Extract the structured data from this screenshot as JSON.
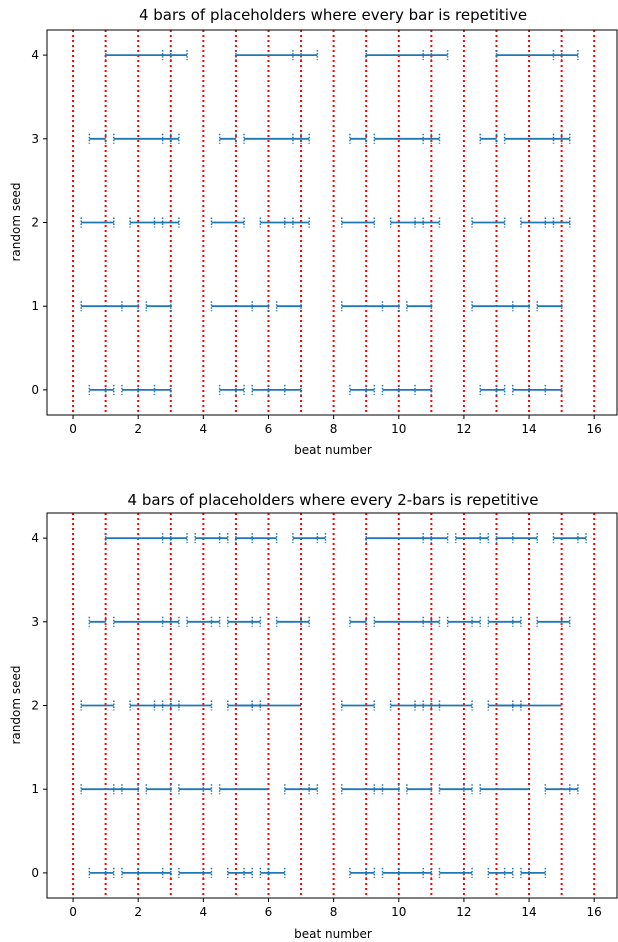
{
  "colors": {
    "segment": "#1f77b4",
    "beat_line": "#ff0000",
    "axes": "#000000"
  },
  "chart_data": [
    {
      "type": "segments",
      "title": "4 bars of placeholders where every bar is repetitive",
      "xlabel": "beat number",
      "ylabel": "random seed",
      "xlim": [
        -0.8,
        16.7
      ],
      "ylim": [
        -0.3,
        4.3
      ],
      "xticks": [
        0,
        2,
        4,
        6,
        8,
        10,
        12,
        14,
        16
      ],
      "yticks": [
        0,
        1,
        2,
        3,
        4
      ],
      "beat_lines": [
        0,
        1,
        2,
        3,
        4,
        5,
        6,
        7,
        8,
        9,
        10,
        11,
        12,
        13,
        14,
        15,
        16
      ],
      "rows": [
        {
          "seed": 0,
          "segments": [
            [
              0.5,
              1.25
            ],
            [
              1.5,
              3.0
            ],
            [
              4.5,
              5.25
            ],
            [
              5.5,
              7.0
            ],
            [
              8.5,
              9.25
            ],
            [
              9.5,
              11.0
            ],
            [
              12.5,
              13.25
            ],
            [
              13.5,
              15.0
            ]
          ],
          "ticks": [
            0.5,
            1.0,
            1.25,
            1.5,
            2.0,
            2.5,
            3.0,
            4.5,
            5.0,
            5.25,
            5.5,
            6.0,
            6.5,
            7.0,
            8.5,
            9.0,
            9.25,
            9.5,
            10.0,
            10.5,
            11.0,
            12.5,
            13.0,
            13.25,
            13.5,
            14.0,
            14.5,
            15.0
          ]
        },
        {
          "seed": 1,
          "segments": [
            [
              0.25,
              2.0
            ],
            [
              2.25,
              3.0
            ],
            [
              4.25,
              6.0
            ],
            [
              6.25,
              7.0
            ],
            [
              8.25,
              10.0
            ],
            [
              10.25,
              11.0
            ],
            [
              12.25,
              14.0
            ],
            [
              14.25,
              15.0
            ]
          ],
          "ticks": [
            0.25,
            1.5,
            2.0,
            2.25,
            3.0,
            4.25,
            5.5,
            6.0,
            6.25,
            7.0,
            8.25,
            9.5,
            10.0,
            10.25,
            11.0,
            12.25,
            13.5,
            14.0,
            14.25,
            15.0
          ]
        },
        {
          "seed": 2,
          "segments": [
            [
              0.25,
              1.25
            ],
            [
              1.75,
              3.25
            ],
            [
              4.25,
              5.25
            ],
            [
              5.75,
              7.25
            ],
            [
              8.25,
              9.25
            ],
            [
              9.75,
              11.25
            ],
            [
              12.25,
              13.25
            ],
            [
              13.75,
              15.25
            ]
          ],
          "ticks": [
            0.25,
            1.25,
            1.75,
            2.5,
            2.75,
            3.25,
            4.25,
            5.25,
            5.75,
            6.5,
            6.75,
            7.25,
            8.25,
            9.25,
            9.75,
            10.5,
            10.75,
            11.25,
            12.25,
            13.25,
            13.75,
            14.5,
            14.75,
            15.25
          ]
        },
        {
          "seed": 3,
          "segments": [
            [
              0.5,
              1.0
            ],
            [
              1.25,
              3.25
            ],
            [
              4.5,
              5.0
            ],
            [
              5.25,
              7.25
            ],
            [
              8.5,
              9.0
            ],
            [
              9.25,
              11.25
            ],
            [
              12.5,
              13.0
            ],
            [
              13.25,
              15.25
            ]
          ],
          "ticks": [
            0.5,
            1.0,
            1.25,
            2.75,
            3.0,
            3.25,
            4.5,
            5.0,
            5.25,
            6.75,
            7.0,
            7.25,
            8.5,
            9.0,
            9.25,
            10.75,
            11.0,
            11.25,
            12.5,
            13.0,
            13.25,
            14.75,
            15.0,
            15.25
          ]
        },
        {
          "seed": 4,
          "segments": [
            [
              1.0,
              3.5
            ],
            [
              5.0,
              7.5
            ],
            [
              9.0,
              11.5
            ],
            [
              13.0,
              15.5
            ]
          ],
          "ticks": [
            1.0,
            2.75,
            3.0,
            3.5,
            5.0,
            6.75,
            7.0,
            7.5,
            9.0,
            10.75,
            11.0,
            11.5,
            13.0,
            14.75,
            15.0,
            15.5
          ]
        }
      ]
    },
    {
      "type": "segments",
      "title": "4 bars of placeholders where every 2-bars is repetitive",
      "xlabel": "beat number",
      "ylabel": "random seed",
      "xlim": [
        -0.8,
        16.7
      ],
      "ylim": [
        -0.3,
        4.3
      ],
      "xticks": [
        0,
        2,
        4,
        6,
        8,
        10,
        12,
        14,
        16
      ],
      "yticks": [
        0,
        1,
        2,
        3,
        4
      ],
      "beat_lines": [
        0,
        1,
        2,
        3,
        4,
        5,
        6,
        7,
        8,
        9,
        10,
        11,
        12,
        13,
        14,
        15,
        16
      ],
      "rows": [
        {
          "seed": 0,
          "segments": [
            [
              0.5,
              1.25
            ],
            [
              1.5,
              3.0
            ],
            [
              3.25,
              4.25
            ],
            [
              4.75,
              5.5
            ],
            [
              5.75,
              6.5
            ],
            [
              8.5,
              9.25
            ],
            [
              9.5,
              11.0
            ],
            [
              11.25,
              12.25
            ],
            [
              12.75,
              13.5
            ],
            [
              13.75,
              14.5
            ]
          ],
          "ticks": [
            0.5,
            1.0,
            1.25,
            1.5,
            2.0,
            2.75,
            3.0,
            3.25,
            4.0,
            4.25,
            4.75,
            5.25,
            5.5,
            5.75,
            6.0,
            6.5,
            8.5,
            9.0,
            9.25,
            9.5,
            10.0,
            10.75,
            11.0,
            11.25,
            12.0,
            12.25,
            12.75,
            13.25,
            13.5,
            13.75,
            14.0,
            14.5
          ]
        },
        {
          "seed": 1,
          "segments": [
            [
              0.25,
              2.0
            ],
            [
              2.25,
              3.0
            ],
            [
              3.25,
              4.25
            ],
            [
              4.5,
              6.0
            ],
            [
              6.5,
              7.5
            ],
            [
              8.25,
              10.0
            ],
            [
              10.25,
              11.0
            ],
            [
              11.25,
              12.25
            ],
            [
              12.5,
              14.0
            ],
            [
              14.5,
              15.5
            ]
          ],
          "ticks": [
            0.25,
            1.25,
            1.5,
            2.0,
            2.25,
            3.0,
            3.25,
            4.0,
            4.25,
            4.5,
            6.5,
            7.25,
            7.5,
            8.25,
            9.25,
            9.5,
            10.0,
            10.25,
            11.0,
            11.25,
            12.0,
            12.25,
            12.5,
            14.5,
            15.25,
            15.5
          ]
        },
        {
          "seed": 2,
          "segments": [
            [
              0.25,
              1.25
            ],
            [
              1.75,
              4.25
            ],
            [
              4.75,
              5.75
            ],
            [
              5.0,
              7.0
            ],
            [
              8.25,
              9.25
            ],
            [
              9.75,
              12.25
            ],
            [
              12.75,
              13.75
            ],
            [
              13.0,
              15.0
            ]
          ],
          "ticks": [
            0.25,
            1.25,
            1.75,
            2.5,
            2.75,
            3.0,
            3.25,
            4.25,
            4.75,
            5.5,
            5.75,
            8.25,
            9.25,
            9.75,
            10.5,
            10.75,
            11.0,
            11.25,
            12.25,
            12.75,
            13.5,
            13.75
          ]
        },
        {
          "seed": 3,
          "segments": [
            [
              0.5,
              1.0
            ],
            [
              1.25,
              3.25
            ],
            [
              3.5,
              4.5
            ],
            [
              4.75,
              5.75
            ],
            [
              6.25,
              7.25
            ],
            [
              8.5,
              9.0
            ],
            [
              9.25,
              11.25
            ],
            [
              11.5,
              12.5
            ],
            [
              12.75,
              13.75
            ],
            [
              14.25,
              15.25
            ]
          ],
          "ticks": [
            0.5,
            1.0,
            1.25,
            2.75,
            3.0,
            3.25,
            3.5,
            4.25,
            4.5,
            4.75,
            5.5,
            5.75,
            6.25,
            7.0,
            7.25,
            8.5,
            9.0,
            9.25,
            10.75,
            11.0,
            11.25,
            11.5,
            12.25,
            12.5,
            12.75,
            13.5,
            13.75,
            14.25,
            15.0,
            15.25
          ]
        },
        {
          "seed": 4,
          "segments": [
            [
              1.0,
              3.5
            ],
            [
              3.75,
              4.75
            ],
            [
              5.0,
              6.25
            ],
            [
              6.75,
              7.75
            ],
            [
              9.0,
              11.5
            ],
            [
              11.75,
              12.75
            ],
            [
              13.0,
              14.25
            ],
            [
              14.75,
              15.75
            ]
          ],
          "ticks": [
            1.0,
            2.75,
            3.0,
            3.5,
            3.75,
            4.5,
            4.75,
            5.0,
            5.5,
            6.25,
            6.75,
            7.5,
            7.75,
            9.0,
            10.75,
            11.0,
            11.5,
            11.75,
            12.5,
            12.75,
            13.0,
            13.5,
            14.25,
            14.75,
            15.5,
            15.75
          ]
        }
      ]
    }
  ]
}
